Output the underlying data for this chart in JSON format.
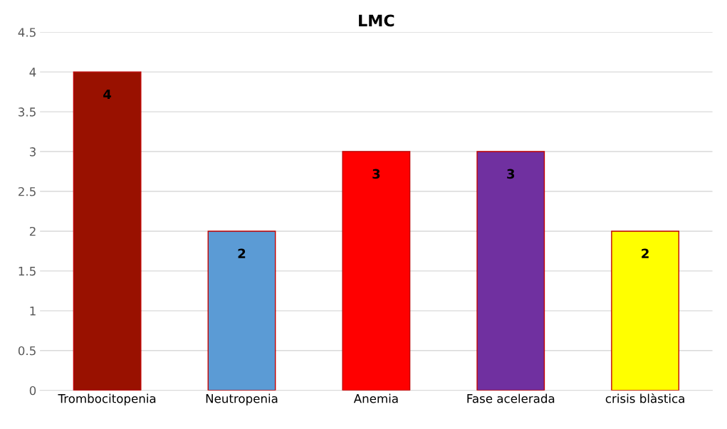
{
  "chart_data": {
    "type": "bar",
    "title": "LMC",
    "categories": [
      "Trombocitopenia",
      "Neutropenia",
      "Anemia",
      "Fase acelerada",
      "crisis blàstica"
    ],
    "values": [
      4,
      2,
      3,
      3,
      2
    ],
    "colors": [
      "#991100",
      "#5b9bd5",
      "#ff0000",
      "#7030a0",
      "#ffff00"
    ],
    "ylim": [
      0,
      4.5
    ],
    "yticks": [
      0,
      0.5,
      1,
      1.5,
      2,
      2.5,
      3,
      3.5,
      4,
      4.5
    ],
    "grid": "y",
    "data_labels": true
  }
}
